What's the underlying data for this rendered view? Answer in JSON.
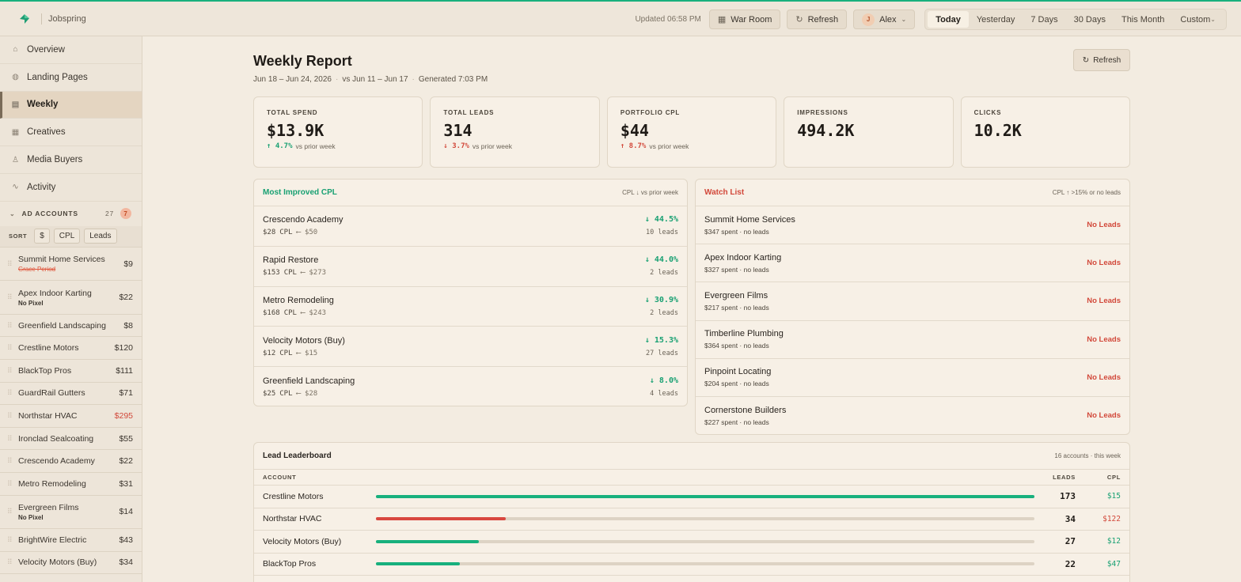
{
  "app": {
    "brand": "Jobspring"
  },
  "topbar": {
    "updated": "Updated 06:58 PM",
    "war_room": "War Room",
    "refresh": "Refresh",
    "user_initial": "J",
    "user": "Alex",
    "ranges": [
      "Today",
      "Yesterday",
      "7 Days",
      "30 Days",
      "This Month",
      "Custom"
    ],
    "active_range": "Today"
  },
  "sidebar": {
    "nav": [
      {
        "label": "Overview",
        "icon": "home-icon"
      },
      {
        "label": "Landing Pages",
        "icon": "globe-icon"
      },
      {
        "label": "Weekly",
        "icon": "calendar-icon",
        "active": true
      },
      {
        "label": "Creatives",
        "icon": "grid-icon"
      },
      {
        "label": "Media Buyers",
        "icon": "users-icon"
      },
      {
        "label": "Activity",
        "icon": "pulse-icon"
      }
    ],
    "accounts_header": "AD ACCOUNTS",
    "accounts_count": "27",
    "accounts_alert": "7",
    "sort_label": "SORT",
    "sort_options": [
      "$",
      "CPL",
      "Leads"
    ],
    "accounts": [
      {
        "name": "Summit Home Services",
        "sub": "Grace Period",
        "sub_style": "alert",
        "amount": "$9"
      },
      {
        "name": "Apex Indoor Karting",
        "sub": "No Pixel",
        "amount": "$22"
      },
      {
        "name": "Greenfield Landscaping",
        "amount": "$8"
      },
      {
        "name": "Crestline Motors",
        "amount": "$120"
      },
      {
        "name": "BlackTop Pros",
        "amount": "$111"
      },
      {
        "name": "GuardRail Gutters",
        "amount": "$71"
      },
      {
        "name": "Northstar HVAC",
        "amount": "$295",
        "alert": true
      },
      {
        "name": "Ironclad Sealcoating",
        "amount": "$55"
      },
      {
        "name": "Crescendo Academy",
        "amount": "$22"
      },
      {
        "name": "Metro Remodeling",
        "amount": "$31"
      },
      {
        "name": "Evergreen Films",
        "sub": "No Pixel",
        "amount": "$14"
      },
      {
        "name": "BrightWire Electric",
        "amount": "$43"
      },
      {
        "name": "Velocity Motors (Buy)",
        "amount": "$34"
      }
    ]
  },
  "report": {
    "title": "Weekly Report",
    "range": "Jun 18 – Jun 24, 2026",
    "compare": "vs Jun 11 – Jun 17",
    "generated": "Generated 7:03 PM",
    "refresh": "Refresh"
  },
  "kpis": [
    {
      "label": "TOTAL SPEND",
      "value": "$13.9K",
      "delta": "↑ 4.7%",
      "delta_color": "#18a072",
      "delta_note": "vs prior week"
    },
    {
      "label": "TOTAL LEADS",
      "value": "314",
      "delta": "↓ 3.7%",
      "delta_color": "#d2483a",
      "delta_note": "vs prior week"
    },
    {
      "label": "PORTFOLIO CPL",
      "value": "$44",
      "delta": "↑ 8.7%",
      "delta_color": "#d2483a",
      "delta_note": "vs prior week"
    },
    {
      "label": "IMPRESSIONS",
      "value": "494.2K"
    },
    {
      "label": "CLICKS",
      "value": "10.2K"
    }
  ],
  "improved": {
    "title": "Most Improved CPL",
    "meta": "CPL ↓ vs prior week",
    "rows": [
      {
        "name": "Crescendo Academy",
        "cpl": "$28",
        "unit": "CPL",
        "arrow": "⟵",
        "prev": "$50",
        "pct": "↓ 44.5%",
        "leads": "10 leads"
      },
      {
        "name": "Rapid Restore",
        "cpl": "$153",
        "unit": "CPL",
        "arrow": "⟵",
        "prev": "$273",
        "pct": "↓ 44.0%",
        "leads": "2 leads"
      },
      {
        "name": "Metro Remodeling",
        "cpl": "$168",
        "unit": "CPL",
        "arrow": "⟵",
        "prev": "$243",
        "pct": "↓ 30.9%",
        "leads": "2 leads"
      },
      {
        "name": "Velocity Motors (Buy)",
        "cpl": "$12",
        "unit": "CPL",
        "arrow": "⟵",
        "prev": "$15",
        "pct": "↓ 15.3%",
        "leads": "27 leads"
      },
      {
        "name": "Greenfield Landscaping",
        "cpl": "$25",
        "unit": "CPL",
        "arrow": "⟵",
        "prev": "$28",
        "pct": "↓ 8.0%",
        "leads": "4 leads"
      }
    ]
  },
  "watch": {
    "title": "Watch List",
    "meta": "CPL ↑ >15% or no leads",
    "rows": [
      {
        "name": "Summit Home Services",
        "sub": "$347 spent · no leads",
        "status": "No Leads"
      },
      {
        "name": "Apex Indoor Karting",
        "sub": "$327 spent · no leads",
        "status": "No Leads"
      },
      {
        "name": "Evergreen Films",
        "sub": "$217 spent · no leads",
        "status": "No Leads"
      },
      {
        "name": "Timberline Plumbing",
        "sub": "$364 spent · no leads",
        "status": "No Leads"
      },
      {
        "name": "Pinpoint Locating",
        "sub": "$204 spent · no leads",
        "status": "No Leads"
      },
      {
        "name": "Cornerstone Builders",
        "sub": "$227 spent · no leads",
        "status": "No Leads"
      }
    ]
  },
  "leaderboard": {
    "title": "Lead Leaderboard",
    "meta": "16 accounts · this week",
    "col_account": "ACCOUNT",
    "col_leads": "LEADS",
    "col_cpl": "CPL",
    "max_leads": 173,
    "rows": [
      {
        "name": "Crestline Motors",
        "leads": 173,
        "cpl": "$15",
        "color": "#18b07d",
        "cpl_color": "#18a072"
      },
      {
        "name": "Northstar HVAC",
        "leads": 34,
        "cpl": "$122",
        "color": "#d9473f",
        "cpl_color": "#d2483a"
      },
      {
        "name": "Velocity Motors (Buy)",
        "leads": 27,
        "cpl": "$12",
        "color": "#18b07d",
        "cpl_color": "#18a072"
      },
      {
        "name": "BlackTop Pros",
        "leads": 22,
        "cpl": "$47",
        "color": "#18b07d",
        "cpl_color": "#18a072"
      }
    ]
  }
}
